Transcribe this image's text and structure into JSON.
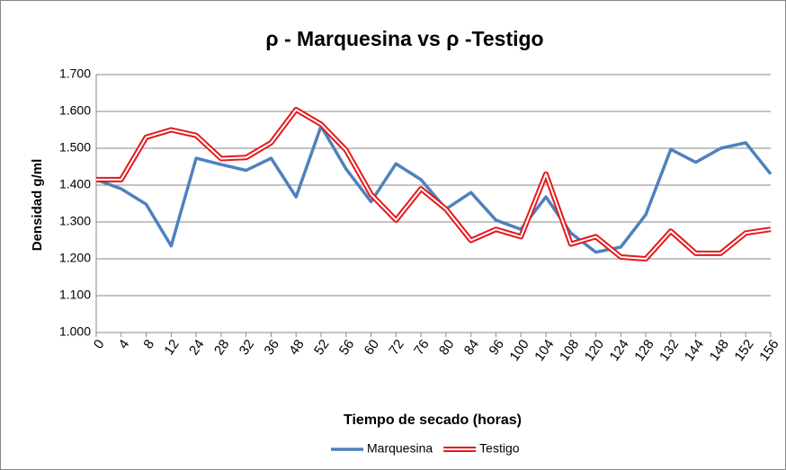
{
  "chart_data": {
    "type": "line",
    "title": "ρ - Marquesina vs  ρ -Testigo",
    "x_label": "Tiempo de secado (horas)",
    "y_label": "Densidad g/ml",
    "categories": [
      "0",
      "4",
      "8",
      "12",
      "24",
      "28",
      "32",
      "36",
      "48",
      "52",
      "56",
      "60",
      "72",
      "76",
      "80",
      "84",
      "96",
      "100",
      "104",
      "108",
      "120",
      "124",
      "128",
      "132",
      "144",
      "148",
      "152",
      "156"
    ],
    "series": [
      {
        "name": "Marquesina",
        "color": "#4f81bd",
        "values": [
          1.415,
          1.39,
          1.348,
          1.235,
          1.473,
          1.456,
          1.44,
          1.473,
          1.368,
          1.56,
          1.444,
          1.355,
          1.458,
          1.415,
          1.335,
          1.38,
          1.305,
          1.28,
          1.368,
          1.27,
          1.218,
          1.232,
          1.32,
          1.497,
          1.462,
          1.5,
          1.515,
          1.43
        ]
      },
      {
        "name": "Testigo",
        "color": "#e3191c",
        "values": [
          1.415,
          1.415,
          1.53,
          1.55,
          1.535,
          1.472,
          1.475,
          1.515,
          1.605,
          1.565,
          1.495,
          1.375,
          1.305,
          1.39,
          1.335,
          1.25,
          1.28,
          1.26,
          1.43,
          1.24,
          1.26,
          1.205,
          1.2,
          1.275,
          1.215,
          1.215,
          1.27,
          1.28
        ]
      }
    ],
    "ylim": [
      1.0,
      1.7
    ],
    "yticks": [
      {
        "value": 1.0,
        "label": "1.000"
      },
      {
        "value": 1.1,
        "label": "1.100"
      },
      {
        "value": 1.2,
        "label": "1.200"
      },
      {
        "value": 1.3,
        "label": "1.300"
      },
      {
        "value": 1.4,
        "label": "1.400"
      },
      {
        "value": 1.5,
        "label": "1.500"
      },
      {
        "value": 1.6,
        "label": "1.600"
      },
      {
        "value": 1.7,
        "label": "1.700"
      }
    ],
    "grid": true,
    "legend": "bottom"
  }
}
